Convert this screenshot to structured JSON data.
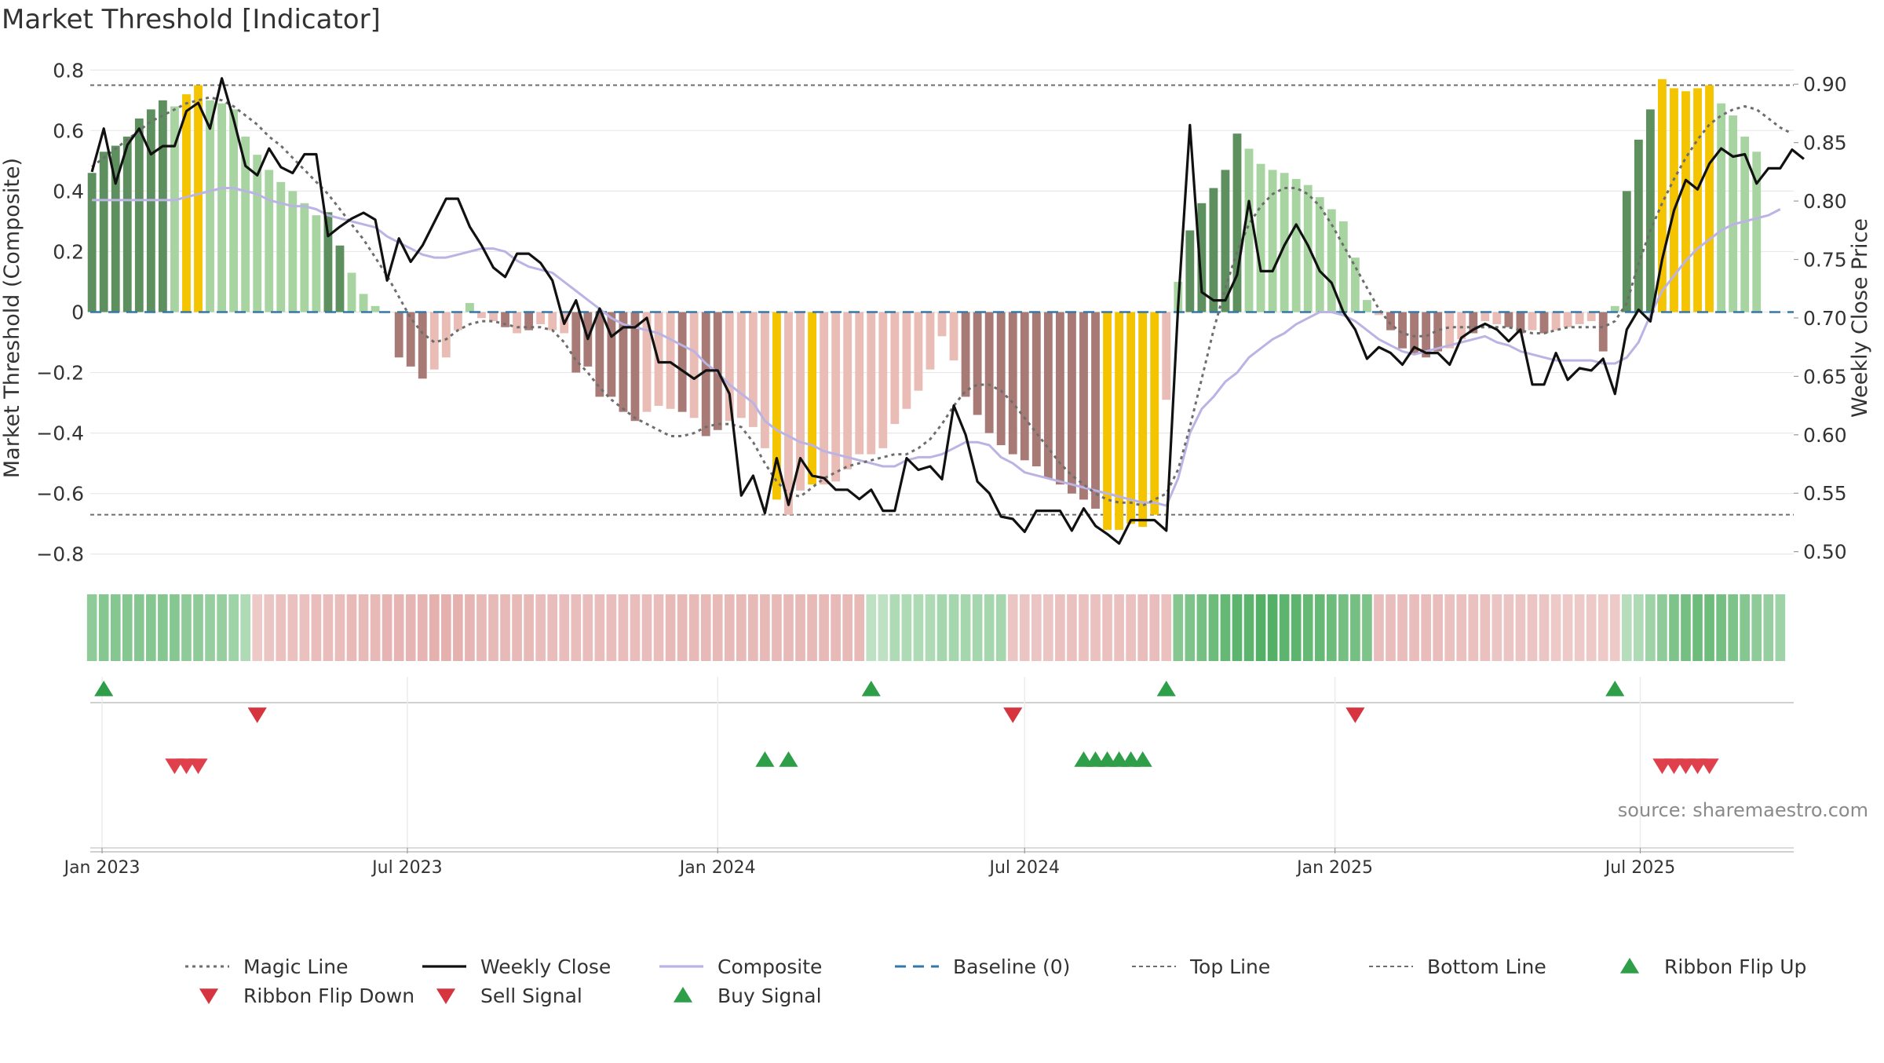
{
  "chart_data": {
    "type": "bar",
    "title": "Market Threshold [Indicator]",
    "ylabel": "Market Threshold (Composite)",
    "y2label": "Weekly Close Price",
    "ylim": [
      -0.85,
      0.85
    ],
    "y2lim": [
      0.485,
      0.925
    ],
    "xlim": [
      "2022-12-25",
      "2025-09-30"
    ],
    "yticks": [
      0.8,
      0.6,
      0.4,
      0.2,
      0,
      -0.2,
      -0.4,
      -0.6,
      -0.8
    ],
    "ytick_labels": [
      "0.8",
      "0.6",
      "0.4",
      "0.2",
      "0",
      "−0.2",
      "−0.4",
      "−0.6",
      "−0.8"
    ],
    "y2ticks": [
      0.9,
      0.85,
      0.8,
      0.75,
      0.7,
      0.65,
      0.6,
      0.55,
      0.5
    ],
    "y2tick_labels": [
      "0.90",
      "0.85",
      "0.80",
      "0.75",
      "0.70",
      "0.65",
      "0.60",
      "0.55",
      "0.50"
    ],
    "xticks": [
      {
        "date": "2023-01-01",
        "label": "Jan 2023"
      },
      {
        "date": "2023-07-01",
        "label": "Jul 2023"
      },
      {
        "date": "2024-01-01",
        "label": "Jan 2024"
      },
      {
        "date": "2024-07-01",
        "label": "Jul 2024"
      },
      {
        "date": "2025-01-01",
        "label": "Jan 2025"
      },
      {
        "date": "2025-07-01",
        "label": "Jul 2025"
      }
    ],
    "start_date": "2022-12-26",
    "week_count": 142,
    "top_line": 0.75,
    "bottom_line": -0.67,
    "baseline": 0,
    "grid": true,
    "legend_position": "bottom",
    "annotation": "source: sharemaestro.com",
    "colors": {
      "bull_dark": "#5e8f5e",
      "bull_light": "#a8d4a2",
      "bear_dark": "#a87a76",
      "bear_light": "#e9bdb6",
      "extreme": "#f5c400",
      "weekly_close": "#111111",
      "composite": "#bbb3e3",
      "magic_line": "#6e6e6e",
      "baseline": "#3577a8",
      "signal_green": "#2e9e48",
      "signal_red": "#d6343f"
    },
    "bar_segments": [
      {
        "start": 0,
        "values": [
          0.46,
          0.53,
          0.55,
          0.58,
          0.64,
          0.67,
          0.7,
          0.68,
          0.72,
          0.75,
          0.7,
          0.69,
          0.67,
          0.58,
          0.52,
          0.47,
          0.43,
          0.4,
          0.36,
          0.32,
          0.33,
          0.22,
          0.13,
          0.06,
          0.02
        ],
        "colors": [
          "bull_dark",
          "bull_dark",
          "bull_dark",
          "bull_dark",
          "bull_dark",
          "bull_dark",
          "bull_dark",
          "bull_light",
          "extreme",
          "extreme",
          "bull_light",
          "bull_light",
          "bull_light",
          "bull_light",
          "bull_light",
          "bull_light",
          "bull_light",
          "bull_light",
          "bull_light",
          "bull_light",
          "bull_dark",
          "bull_dark",
          "bull_light",
          "bull_light",
          "bull_light"
        ]
      },
      {
        "start": 25,
        "values": [
          0.0,
          -0.15,
          -0.18,
          -0.22,
          -0.19,
          -0.15,
          -0.06,
          0.03,
          -0.02,
          -0.03,
          -0.05,
          -0.07,
          -0.06,
          -0.04,
          -0.06,
          -0.07,
          -0.2,
          -0.18,
          -0.28,
          -0.28,
          -0.33,
          -0.36,
          -0.33,
          -0.31,
          -0.32,
          -0.33,
          -0.35,
          -0.41,
          -0.39,
          -0.36,
          -0.35,
          -0.38,
          -0.45,
          -0.62,
          -0.67,
          -0.59,
          -0.57,
          -0.57,
          -0.56,
          -0.52,
          -0.47,
          -0.47,
          -0.45,
          -0.37,
          -0.32,
          -0.26,
          -0.19,
          -0.08,
          -0.16,
          -0.28,
          -0.34,
          -0.4,
          -0.44,
          -0.47,
          -0.49,
          -0.51,
          -0.55,
          -0.57,
          -0.6,
          -0.62,
          -0.65,
          -0.72,
          -0.72,
          -0.7,
          -0.71,
          -0.67,
          -0.29
        ],
        "colors": [
          "bear_light",
          "bear_dark",
          "bear_dark",
          "bear_dark",
          "bear_light",
          "bear_light",
          "bear_light",
          "bull_light",
          "bear_light",
          "bear_light",
          "bear_dark",
          "bear_light",
          "bear_dark",
          "bear_light",
          "bear_light",
          "bear_light",
          "bear_dark",
          "bear_dark",
          "bear_dark",
          "bear_dark",
          "bear_dark",
          "bear_dark",
          "bear_light",
          "bear_light",
          "bear_light",
          "bear_dark",
          "bear_light",
          "bear_dark",
          "bear_dark",
          "bear_light",
          "bear_light",
          "bear_light",
          "bear_light",
          "extreme",
          "bear_light",
          "bear_light",
          "extreme",
          "bear_light",
          "bear_light",
          "bear_light",
          "bear_light",
          "bear_light",
          "bear_light",
          "bear_light",
          "bear_light",
          "bear_light",
          "bear_light",
          "bear_light",
          "bear_light",
          "bear_dark",
          "bear_dark",
          "bear_dark",
          "bear_dark",
          "bear_dark",
          "bear_dark",
          "bear_dark",
          "bear_dark",
          "bear_dark",
          "bear_dark",
          "bear_dark",
          "bear_dark",
          "extreme",
          "extreme",
          "extreme",
          "extreme",
          "extreme",
          "bear_light"
        ]
      },
      {
        "start": 92,
        "values": [
          0.1,
          0.27,
          0.36,
          0.41,
          0.47,
          0.59,
          0.54,
          0.49,
          0.47,
          0.46,
          0.44,
          0.42,
          0.38,
          0.34,
          0.3,
          0.18,
          0.04
        ],
        "colors": [
          "bull_light",
          "bull_dark",
          "bull_dark",
          "bull_dark",
          "bull_dark",
          "bull_dark",
          "bull_light",
          "bull_light",
          "bull_light",
          "bull_light",
          "bull_light",
          "bull_light",
          "bull_light",
          "bull_light",
          "bull_light",
          "bull_light",
          "bull_light"
        ]
      },
      {
        "start": 109,
        "values": [
          -0.01,
          -0.06,
          -0.12,
          -0.14,
          -0.15,
          -0.13,
          -0.12,
          -0.09,
          -0.07,
          -0.03,
          -0.04,
          -0.05,
          -0.07,
          -0.06,
          -0.07,
          -0.06,
          -0.05,
          -0.04,
          -0.03,
          -0.13
        ],
        "colors": [
          "bear_light",
          "bear_dark",
          "bear_dark",
          "bear_dark",
          "bear_dark",
          "bear_dark",
          "bear_light",
          "bear_light",
          "bear_dark",
          "bear_light",
          "bear_light",
          "bear_dark",
          "bear_dark",
          "bear_light",
          "bear_dark",
          "bear_light",
          "bear_light",
          "bear_light",
          "bear_light",
          "bear_dark"
        ]
      },
      {
        "start": 129,
        "values": [
          0.02,
          0.4,
          0.57,
          0.67,
          0.77,
          0.74,
          0.73,
          0.74,
          0.75,
          0.69,
          0.65,
          0.58,
          0.53
        ],
        "colors": [
          "bull_light",
          "bull_dark",
          "bull_dark",
          "bull_dark",
          "extreme",
          "extreme",
          "extreme",
          "extreme",
          "extreme",
          "bull_light",
          "bull_light",
          "bull_light",
          "bull_light"
        ]
      }
    ],
    "ribbon": {
      "levels": [
        0.5,
        0.55,
        0.55,
        0.55,
        0.55,
        0.55,
        0.55,
        0.55,
        0.5,
        0.5,
        0.45,
        0.45,
        0.4,
        0.3,
        -0.25,
        -0.3,
        -0.35,
        -0.35,
        -0.35,
        -0.4,
        -0.4,
        -0.4,
        -0.45,
        -0.45,
        -0.45,
        -0.5,
        -0.5,
        -0.5,
        -0.5,
        -0.55,
        -0.55,
        -0.55,
        -0.5,
        -0.45,
        -0.45,
        -0.45,
        -0.45,
        -0.45,
        -0.4,
        -0.4,
        -0.4,
        -0.4,
        -0.4,
        -0.4,
        -0.4,
        -0.4,
        -0.4,
        -0.4,
        -0.4,
        -0.45,
        -0.45,
        -0.45,
        -0.45,
        -0.45,
        -0.45,
        -0.45,
        -0.45,
        -0.45,
        -0.45,
        -0.45,
        -0.45,
        -0.45,
        -0.45,
        -0.45,
        -0.45,
        -0.45,
        0.2,
        0.2,
        0.3,
        0.3,
        0.3,
        0.3,
        0.35,
        0.35,
        0.35,
        0.35,
        0.35,
        0.35,
        -0.3,
        -0.3,
        -0.3,
        -0.3,
        -0.35,
        -0.35,
        -0.35,
        -0.35,
        -0.35,
        -0.35,
        -0.35,
        -0.4,
        -0.4,
        -0.35,
        0.55,
        0.6,
        0.65,
        0.7,
        0.75,
        0.8,
        0.8,
        0.85,
        0.85,
        0.8,
        0.8,
        0.75,
        0.75,
        0.7,
        0.65,
        0.65,
        0.6,
        -0.4,
        -0.4,
        -0.4,
        -0.4,
        -0.4,
        -0.4,
        -0.35,
        -0.35,
        -0.35,
        -0.35,
        -0.3,
        -0.3,
        -0.3,
        -0.3,
        -0.3,
        -0.25,
        -0.25,
        -0.25,
        -0.25,
        -0.25,
        -0.25,
        0.25,
        0.3,
        0.4,
        0.5,
        0.6,
        0.65,
        0.7,
        0.7,
        0.65,
        0.6,
        0.55,
        0.5,
        0.45,
        0.4
      ]
    },
    "series": [
      {
        "name": "Weekly Close",
        "axis": "right",
        "values": [
          0.825,
          0.862,
          0.815,
          0.848,
          0.862,
          0.84,
          0.847,
          0.847,
          0.877,
          0.884,
          0.862,
          0.905,
          0.87,
          0.83,
          0.822,
          0.845,
          0.829,
          0.824,
          0.84,
          0.84,
          0.77,
          0.778,
          0.785,
          0.79,
          0.784,
          0.732,
          0.768,
          0.748,
          0.762,
          0.782,
          0.802,
          0.802,
          0.778,
          0.762,
          0.743,
          0.735,
          0.755,
          0.755,
          0.747,
          0.732,
          0.695,
          0.715,
          0.682,
          0.708,
          0.684,
          0.692,
          0.692,
          0.7,
          0.662,
          0.662,
          0.655,
          0.648,
          0.655,
          0.655,
          0.635,
          0.548,
          0.565,
          0.533,
          0.58,
          0.54,
          0.58,
          0.565,
          0.563,
          0.553,
          0.553,
          0.545,
          0.553,
          0.535,
          0.535,
          0.58,
          0.57,
          0.573,
          0.562,
          0.625,
          0.6,
          0.56,
          0.55,
          0.53,
          0.528,
          0.517,
          0.535,
          0.535,
          0.535,
          0.518,
          0.537,
          0.522,
          0.515,
          0.507,
          0.527,
          0.527,
          0.527,
          0.518,
          0.71,
          0.865,
          0.722,
          0.715,
          0.715,
          0.737,
          0.8,
          0.74,
          0.74,
          0.762,
          0.78,
          0.762,
          0.74,
          0.73,
          0.705,
          0.69,
          0.665,
          0.675,
          0.67,
          0.66,
          0.675,
          0.67,
          0.67,
          0.66,
          0.683,
          0.69,
          0.695,
          0.69,
          0.68,
          0.69,
          0.643,
          0.643,
          0.67,
          0.647,
          0.657,
          0.655,
          0.665,
          0.635,
          0.69,
          0.707,
          0.697,
          0.75,
          0.792,
          0.818,
          0.81,
          0.832,
          0.845,
          0.838,
          0.84,
          0.815,
          0.828,
          0.828,
          0.844,
          0.836
        ]
      },
      {
        "name": "Composite",
        "axis": "left",
        "values": [
          0.37,
          0.37,
          0.37,
          0.37,
          0.37,
          0.37,
          0.37,
          0.37,
          0.38,
          0.39,
          0.4,
          0.41,
          0.41,
          0.4,
          0.39,
          0.37,
          0.36,
          0.35,
          0.35,
          0.34,
          0.32,
          0.31,
          0.3,
          0.29,
          0.28,
          0.25,
          0.23,
          0.21,
          0.19,
          0.18,
          0.18,
          0.19,
          0.2,
          0.21,
          0.21,
          0.2,
          0.17,
          0.15,
          0.14,
          0.13,
          0.1,
          0.07,
          0.04,
          0.01,
          -0.02,
          -0.04,
          -0.05,
          -0.06,
          -0.07,
          -0.09,
          -0.11,
          -0.13,
          -0.17,
          -0.2,
          -0.24,
          -0.27,
          -0.3,
          -0.36,
          -0.39,
          -0.41,
          -0.43,
          -0.44,
          -0.46,
          -0.47,
          -0.48,
          -0.49,
          -0.5,
          -0.51,
          -0.51,
          -0.49,
          -0.48,
          -0.48,
          -0.47,
          -0.45,
          -0.43,
          -0.43,
          -0.44,
          -0.48,
          -0.5,
          -0.53,
          -0.54,
          -0.55,
          -0.56,
          -0.57,
          -0.58,
          -0.59,
          -0.6,
          -0.61,
          -0.62,
          -0.63,
          -0.63,
          -0.64,
          -0.55,
          -0.4,
          -0.32,
          -0.28,
          -0.23,
          -0.2,
          -0.15,
          -0.12,
          -0.09,
          -0.07,
          -0.04,
          -0.02,
          0.0,
          0.0,
          -0.01,
          -0.03,
          -0.06,
          -0.09,
          -0.11,
          -0.13,
          -0.14,
          -0.13,
          -0.12,
          -0.11,
          -0.1,
          -0.09,
          -0.08,
          -0.1,
          -0.11,
          -0.13,
          -0.14,
          -0.15,
          -0.16,
          -0.16,
          -0.16,
          -0.16,
          -0.17,
          -0.17,
          -0.15,
          -0.1,
          -0.01,
          0.07,
          0.12,
          0.17,
          0.21,
          0.24,
          0.27,
          0.29,
          0.3,
          0.31,
          0.32,
          0.34
        ]
      },
      {
        "name": "Magic Line",
        "axis": "left",
        "values": [
          0.48,
          0.51,
          0.54,
          0.57,
          0.6,
          0.63,
          0.65,
          0.67,
          0.69,
          0.7,
          0.71,
          0.7,
          0.68,
          0.65,
          0.62,
          0.58,
          0.55,
          0.51,
          0.47,
          0.43,
          0.39,
          0.34,
          0.29,
          0.24,
          0.18,
          0.12,
          0.05,
          -0.02,
          -0.07,
          -0.1,
          -0.09,
          -0.06,
          -0.04,
          -0.03,
          -0.03,
          -0.04,
          -0.05,
          -0.05,
          -0.05,
          -0.06,
          -0.1,
          -0.16,
          -0.2,
          -0.25,
          -0.29,
          -0.32,
          -0.35,
          -0.37,
          -0.39,
          -0.41,
          -0.41,
          -0.4,
          -0.38,
          -0.37,
          -0.37,
          -0.38,
          -0.43,
          -0.5,
          -0.56,
          -0.6,
          -0.61,
          -0.58,
          -0.55,
          -0.53,
          -0.51,
          -0.5,
          -0.49,
          -0.48,
          -0.47,
          -0.47,
          -0.45,
          -0.42,
          -0.37,
          -0.31,
          -0.26,
          -0.24,
          -0.24,
          -0.26,
          -0.3,
          -0.35,
          -0.4,
          -0.45,
          -0.5,
          -0.54,
          -0.57,
          -0.6,
          -0.62,
          -0.63,
          -0.63,
          -0.64,
          -0.62,
          -0.6,
          -0.52,
          -0.38,
          -0.22,
          -0.06,
          0.08,
          0.2,
          0.29,
          0.35,
          0.39,
          0.41,
          0.41,
          0.39,
          0.35,
          0.29,
          0.22,
          0.15,
          0.08,
          0.01,
          -0.04,
          -0.07,
          -0.08,
          -0.08,
          -0.06,
          -0.05,
          -0.05,
          -0.05,
          -0.05,
          -0.05,
          -0.05,
          -0.06,
          -0.07,
          -0.07,
          -0.06,
          -0.05,
          -0.05,
          -0.05,
          -0.05,
          -0.03,
          0.03,
          0.16,
          0.27,
          0.36,
          0.44,
          0.51,
          0.57,
          0.62,
          0.65,
          0.67,
          0.68,
          0.67,
          0.64,
          0.61,
          0.59
        ]
      }
    ],
    "ribbon_flip_up": [
      1,
      66,
      91,
      129
    ],
    "ribbon_flip_down": [
      14,
      78,
      107
    ],
    "buy_signals": [
      57,
      59,
      84,
      85,
      86,
      87,
      88,
      89
    ],
    "sell_signals": [
      7,
      8,
      9,
      133,
      134,
      135,
      136,
      137
    ],
    "legend": [
      {
        "label": "Magic Line",
        "symbol": "line-dotted",
        "color": "magic_line"
      },
      {
        "label": "Weekly Close",
        "symbol": "line-solid",
        "color": "weekly_close"
      },
      {
        "label": "Composite",
        "symbol": "line-solid",
        "color": "composite"
      },
      {
        "label": "Baseline (0)",
        "symbol": "line-dashed",
        "color": "baseline"
      },
      {
        "label": "Top Line",
        "symbol": "line-fine-dashed",
        "color": "magic_line"
      },
      {
        "label": "Bottom Line",
        "symbol": "line-fine-dashed",
        "color": "magic_line"
      },
      {
        "label": "Ribbon Flip Up",
        "symbol": "triangle-up",
        "color": "signal_green"
      },
      {
        "label": "Ribbon Flip Down",
        "symbol": "triangle-down",
        "color": "signal_red"
      },
      {
        "label": "Sell Signal",
        "symbol": "triangle-down",
        "color": "signal_red"
      },
      {
        "label": "Buy Signal",
        "symbol": "triangle-up",
        "color": "signal_green"
      }
    ]
  }
}
